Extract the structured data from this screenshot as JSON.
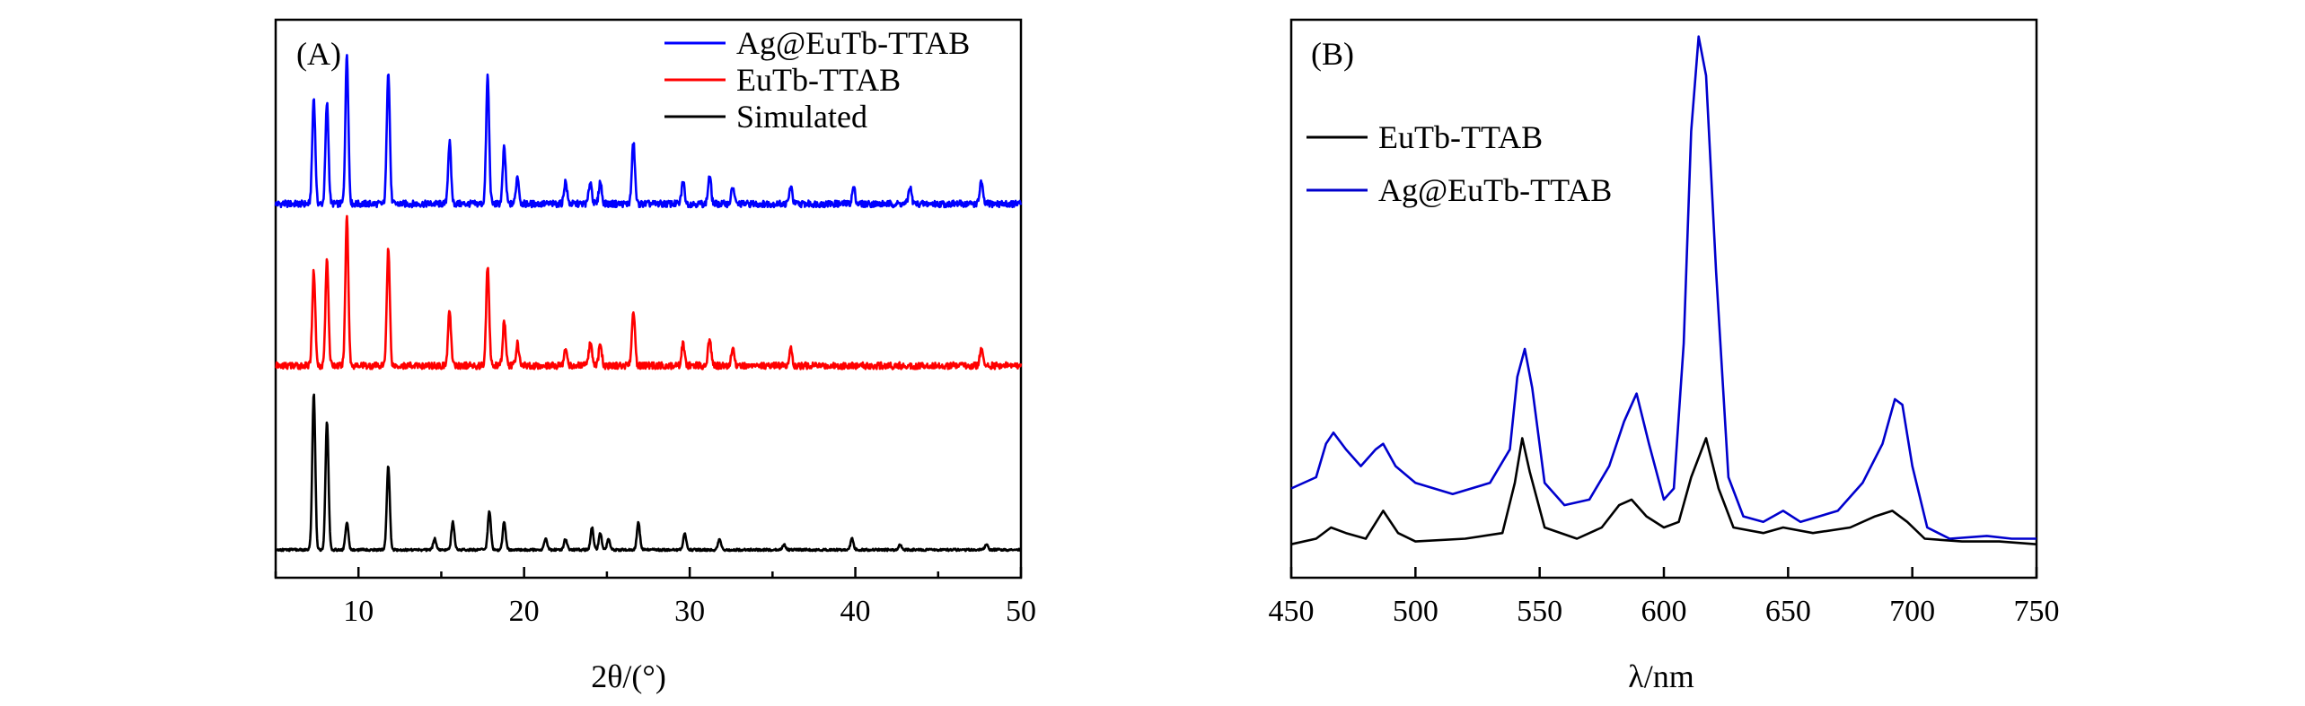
{
  "chart_data": [
    {
      "type": "line",
      "panel_label": "(A)",
      "title": "",
      "xlabel": "2θ/(°)",
      "ylabel": "",
      "xlim": [
        5,
        50
      ],
      "xticks": [
        10,
        20,
        30,
        40,
        50
      ],
      "xtick_labels": [
        "10",
        "20",
        "30",
        "40",
        "50"
      ],
      "ylim": [
        0,
        1
      ],
      "yticks_shown": false,
      "legend_position": "top-right",
      "series": [
        {
          "name": "Ag@EuTb-TTAB",
          "color": "#0000ff",
          "offset": 0.67,
          "peaks": [
            [
              7.3,
              0.19
            ],
            [
              8.1,
              0.18
            ],
            [
              9.3,
              0.27
            ],
            [
              11.8,
              0.24
            ],
            [
              15.5,
              0.11
            ],
            [
              17.8,
              0.23
            ],
            [
              18.8,
              0.1
            ],
            [
              19.6,
              0.05
            ],
            [
              22.5,
              0.04
            ],
            [
              24.0,
              0.04
            ],
            [
              24.6,
              0.04
            ],
            [
              26.6,
              0.11
            ],
            [
              29.6,
              0.04
            ],
            [
              31.2,
              0.05
            ],
            [
              32.6,
              0.03
            ],
            [
              36.1,
              0.03
            ],
            [
              39.9,
              0.03
            ],
            [
              43.3,
              0.03
            ],
            [
              47.6,
              0.04
            ]
          ]
        },
        {
          "name": "EuTb-TTAB",
          "color": "#ff0000",
          "offset": 0.38,
          "peaks": [
            [
              7.3,
              0.17
            ],
            [
              8.1,
              0.19
            ],
            [
              9.3,
              0.27
            ],
            [
              11.8,
              0.21
            ],
            [
              15.5,
              0.1
            ],
            [
              17.8,
              0.18
            ],
            [
              18.8,
              0.08
            ],
            [
              19.6,
              0.04
            ],
            [
              22.5,
              0.03
            ],
            [
              24.0,
              0.04
            ],
            [
              24.6,
              0.04
            ],
            [
              26.6,
              0.1
            ],
            [
              29.6,
              0.04
            ],
            [
              31.2,
              0.05
            ],
            [
              32.6,
              0.03
            ],
            [
              36.1,
              0.03
            ],
            [
              47.6,
              0.03
            ]
          ]
        },
        {
          "name": "Simulated",
          "color": "#000000",
          "offset": 0.05,
          "peaks": [
            [
              7.3,
              0.28
            ],
            [
              8.1,
              0.23
            ],
            [
              9.3,
              0.05
            ],
            [
              11.8,
              0.15
            ],
            [
              14.6,
              0.02
            ],
            [
              15.7,
              0.05
            ],
            [
              17.9,
              0.07
            ],
            [
              18.8,
              0.05
            ],
            [
              21.3,
              0.02
            ],
            [
              22.5,
              0.02
            ],
            [
              24.1,
              0.04
            ],
            [
              24.6,
              0.03
            ],
            [
              25.1,
              0.02
            ],
            [
              26.9,
              0.05
            ],
            [
              29.7,
              0.03
            ],
            [
              31.8,
              0.02
            ],
            [
              35.7,
              0.01
            ],
            [
              39.8,
              0.02
            ],
            [
              42.7,
              0.01
            ],
            [
              47.9,
              0.01
            ]
          ]
        }
      ]
    },
    {
      "type": "line",
      "panel_label": "(B)",
      "title": "",
      "xlabel": "λ/nm",
      "ylabel": "",
      "xlim": [
        450,
        750
      ],
      "xticks": [
        450,
        500,
        550,
        600,
        650,
        700,
        750
      ],
      "xtick_labels": [
        "450",
        "500",
        "550",
        "600",
        "650",
        "700",
        "750"
      ],
      "ylim": [
        0,
        1
      ],
      "yticks_shown": false,
      "legend_position": "top-left",
      "series": [
        {
          "name": "EuTb-TTAB",
          "color": "#000000",
          "points": [
            [
              450,
              0.06
            ],
            [
              460,
              0.07
            ],
            [
              466,
              0.09
            ],
            [
              472,
              0.08
            ],
            [
              480,
              0.07
            ],
            [
              487,
              0.12
            ],
            [
              493,
              0.08
            ],
            [
              500,
              0.065
            ],
            [
              520,
              0.07
            ],
            [
              535,
              0.08
            ],
            [
              540,
              0.17
            ],
            [
              543,
              0.25
            ],
            [
              546,
              0.19
            ],
            [
              552,
              0.09
            ],
            [
              565,
              0.07
            ],
            [
              575,
              0.09
            ],
            [
              582,
              0.13
            ],
            [
              587,
              0.14
            ],
            [
              593,
              0.11
            ],
            [
              600,
              0.09
            ],
            [
              606,
              0.1
            ],
            [
              611,
              0.18
            ],
            [
              617,
              0.25
            ],
            [
              622,
              0.16
            ],
            [
              628,
              0.09
            ],
            [
              640,
              0.08
            ],
            [
              648,
              0.09
            ],
            [
              660,
              0.08
            ],
            [
              675,
              0.09
            ],
            [
              685,
              0.11
            ],
            [
              692,
              0.12
            ],
            [
              698,
              0.1
            ],
            [
              705,
              0.07
            ],
            [
              720,
              0.065
            ],
            [
              735,
              0.065
            ],
            [
              750,
              0.06
            ]
          ]
        },
        {
          "name": "Ag@EuTb-TTAB",
          "color": "#0000cd",
          "points": [
            [
              450,
              0.16
            ],
            [
              460,
              0.18
            ],
            [
              464,
              0.24
            ],
            [
              467,
              0.26
            ],
            [
              472,
              0.23
            ],
            [
              478,
              0.2
            ],
            [
              484,
              0.23
            ],
            [
              487,
              0.24
            ],
            [
              492,
              0.2
            ],
            [
              500,
              0.17
            ],
            [
              515,
              0.15
            ],
            [
              530,
              0.17
            ],
            [
              538,
              0.23
            ],
            [
              541,
              0.36
            ],
            [
              544,
              0.41
            ],
            [
              547,
              0.34
            ],
            [
              552,
              0.17
            ],
            [
              560,
              0.13
            ],
            [
              570,
              0.14
            ],
            [
              578,
              0.2
            ],
            [
              584,
              0.28
            ],
            [
              589,
              0.33
            ],
            [
              594,
              0.24
            ],
            [
              600,
              0.14
            ],
            [
              604,
              0.16
            ],
            [
              608,
              0.42
            ],
            [
              611,
              0.8
            ],
            [
              614,
              0.97
            ],
            [
              617,
              0.9
            ],
            [
              621,
              0.55
            ],
            [
              626,
              0.18
            ],
            [
              632,
              0.11
            ],
            [
              640,
              0.1
            ],
            [
              648,
              0.12
            ],
            [
              655,
              0.1
            ],
            [
              670,
              0.12
            ],
            [
              680,
              0.17
            ],
            [
              688,
              0.24
            ],
            [
              693,
              0.32
            ],
            [
              696,
              0.31
            ],
            [
              700,
              0.2
            ],
            [
              706,
              0.09
            ],
            [
              715,
              0.07
            ],
            [
              730,
              0.075
            ],
            [
              740,
              0.07
            ],
            [
              750,
              0.07
            ]
          ]
        }
      ]
    }
  ]
}
